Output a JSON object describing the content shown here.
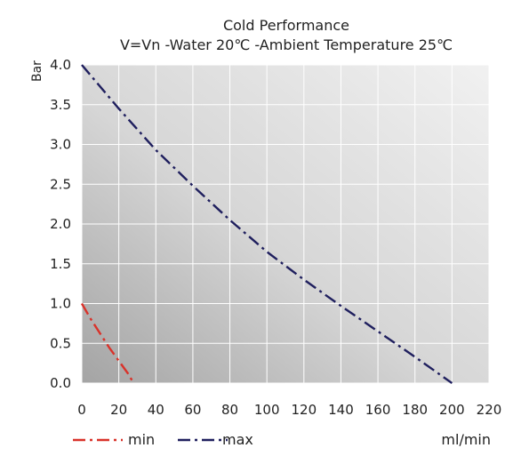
{
  "chart_data": {
    "type": "line",
    "title": "Cold Performance",
    "subtitle": "V=Vn -Water 20℃ -Ambient Temperature 25℃",
    "xlabel": "ml/min",
    "ylabel": "Bar",
    "xlim": [
      0,
      220
    ],
    "ylim": [
      0,
      4.0
    ],
    "x_ticks": [
      "0",
      "20",
      "40",
      "60",
      "80",
      "100",
      "120",
      "140",
      "160",
      "180",
      "200",
      "220"
    ],
    "y_ticks": [
      "0.0",
      "0.5",
      "1.0",
      "1.5",
      "2.0",
      "2.5",
      "3.0",
      "3.5",
      "4.0"
    ],
    "grid": true,
    "legend_position": "bottom",
    "series": [
      {
        "name": "min",
        "color": "#d9322a",
        "points": [
          [
            0,
            1.0
          ],
          [
            5,
            0.8
          ],
          [
            10,
            0.62
          ],
          [
            15,
            0.44
          ],
          [
            20,
            0.28
          ],
          [
            25,
            0.12
          ],
          [
            28,
            0.0
          ]
        ]
      },
      {
        "name": "max",
        "color": "#1f1f5e",
        "points": [
          [
            0,
            4.0
          ],
          [
            20,
            3.45
          ],
          [
            40,
            2.93
          ],
          [
            60,
            2.48
          ],
          [
            80,
            2.05
          ],
          [
            100,
            1.65
          ],
          [
            120,
            1.3
          ],
          [
            140,
            0.97
          ],
          [
            160,
            0.65
          ],
          [
            180,
            0.33
          ],
          [
            200,
            0.0
          ]
        ]
      }
    ]
  }
}
